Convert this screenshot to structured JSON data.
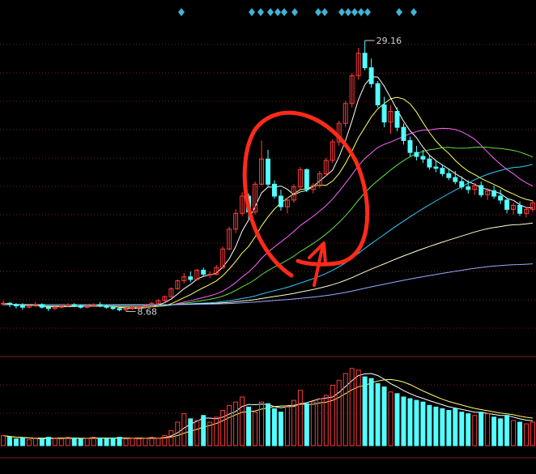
{
  "colors": {
    "background": "#000000",
    "up": "#ff3b3b",
    "down": "#54ffff",
    "grid": "#7a1f1f",
    "signal": "#3fb4d6",
    "annotation": "#ff2a1a",
    "ma5": "#ffffff",
    "ma10": "#ffff66",
    "ma20": "#ff66ff",
    "ma30": "#66dd44",
    "ma60": "#33ccff",
    "ma120": "#ffffcc",
    "ma250": "#99aaff"
  },
  "chart_data": {
    "type": "candlestick",
    "price_range": [
      6.5,
      31
    ],
    "high_label": "29.16",
    "low_label": "8.68",
    "signal_marker_icon": "diamond-icon",
    "annotation": {
      "shape": "ellipse",
      "arrow": "up-right"
    },
    "candles": [
      [
        9.3,
        9.5,
        9.1,
        9.3
      ],
      [
        9.3,
        9.4,
        9.0,
        9.2
      ],
      [
        9.2,
        9.3,
        8.9,
        9.1
      ],
      [
        9.1,
        9.3,
        8.8,
        9.0
      ],
      [
        9.0,
        9.2,
        8.9,
        9.1
      ],
      [
        9.1,
        9.4,
        9.0,
        9.2
      ],
      [
        9.2,
        9.3,
        8.9,
        9.0
      ],
      [
        9.0,
        9.1,
        8.7,
        8.9
      ],
      [
        8.9,
        9.1,
        8.8,
        9.0
      ],
      [
        9.0,
        9.2,
        8.9,
        9.1
      ],
      [
        9.1,
        9.3,
        9.0,
        9.2
      ],
      [
        9.2,
        9.3,
        9.0,
        9.1
      ],
      [
        9.1,
        9.2,
        8.9,
        9.0
      ],
      [
        9.0,
        9.2,
        8.9,
        9.1
      ],
      [
        9.1,
        9.3,
        9.0,
        9.2
      ],
      [
        9.2,
        9.4,
        9.0,
        9.1
      ],
      [
        9.1,
        9.2,
        8.9,
        9.0
      ],
      [
        9.0,
        9.1,
        8.8,
        8.9
      ],
      [
        8.9,
        9.0,
        8.7,
        8.8
      ],
      [
        8.8,
        9.0,
        8.68,
        8.9
      ],
      [
        8.9,
        9.1,
        8.8,
        9.0
      ],
      [
        9.0,
        9.1,
        8.9,
        9.0
      ],
      [
        9.0,
        9.2,
        8.9,
        9.1
      ],
      [
        9.1,
        9.4,
        9.0,
        9.3
      ],
      [
        9.3,
        9.6,
        9.2,
        9.5
      ],
      [
        9.5,
        9.9,
        9.4,
        9.8
      ],
      [
        9.8,
        10.5,
        9.7,
        10.4
      ],
      [
        10.4,
        11.1,
        10.3,
        11.0
      ],
      [
        11.0,
        11.6,
        10.8,
        11.3
      ],
      [
        11.3,
        11.7,
        10.9,
        11.1
      ],
      [
        11.1,
        11.9,
        11.0,
        11.8
      ],
      [
        11.8,
        12.0,
        11.3,
        11.5
      ],
      [
        11.5,
        11.7,
        11.2,
        11.5
      ],
      [
        11.5,
        12.2,
        11.4,
        12.0
      ],
      [
        12.0,
        13.6,
        11.9,
        13.4
      ],
      [
        13.4,
        15.1,
        13.3,
        14.9
      ],
      [
        14.9,
        16.4,
        14.6,
        16.1
      ],
      [
        16.1,
        17.7,
        15.9,
        17.4
      ],
      [
        17.4,
        17.6,
        15.7,
        16.2
      ],
      [
        16.2,
        18.5,
        16.0,
        18.3
      ],
      [
        18.3,
        21.6,
        18.2,
        20.2
      ],
      [
        20.2,
        20.9,
        18.1,
        18.3
      ],
      [
        18.3,
        18.6,
        17.2,
        17.4
      ],
      [
        17.4,
        17.9,
        16.3,
        16.6
      ],
      [
        16.6,
        17.3,
        16.1,
        17.1
      ],
      [
        17.1,
        18.3,
        16.9,
        18.1
      ],
      [
        18.1,
        19.6,
        17.9,
        19.4
      ],
      [
        19.4,
        19.5,
        17.7,
        17.9
      ],
      [
        17.9,
        18.4,
        17.6,
        18.2
      ],
      [
        18.2,
        19.3,
        18.0,
        19.1
      ],
      [
        19.1,
        20.3,
        18.9,
        20.1
      ],
      [
        20.1,
        21.7,
        19.9,
        21.5
      ],
      [
        21.5,
        23.1,
        21.2,
        22.9
      ],
      [
        22.9,
        24.6,
        22.6,
        24.4
      ],
      [
        24.4,
        26.7,
        24.1,
        26.5
      ],
      [
        26.5,
        28.6,
        26.2,
        28.2
      ],
      [
        28.2,
        29.16,
        26.9,
        27.1
      ],
      [
        27.1,
        27.8,
        25.6,
        25.9
      ],
      [
        25.9,
        26.1,
        24.1,
        24.3
      ],
      [
        24.3,
        24.9,
        22.6,
        23.0
      ],
      [
        23.0,
        24.3,
        22.1,
        23.8
      ],
      [
        23.8,
        24.1,
        22.3,
        22.6
      ],
      [
        22.6,
        22.9,
        21.3,
        21.6
      ],
      [
        21.6,
        21.9,
        20.4,
        20.7
      ],
      [
        20.7,
        21.2,
        20.1,
        20.4
      ],
      [
        20.4,
        20.9,
        19.9,
        20.2
      ],
      [
        20.2,
        20.5,
        19.4,
        19.6
      ],
      [
        19.6,
        20.1,
        19.2,
        19.5
      ],
      [
        19.5,
        19.8,
        18.9,
        19.1
      ],
      [
        19.1,
        19.5,
        18.6,
        18.8
      ],
      [
        18.8,
        19.3,
        18.3,
        18.5
      ],
      [
        18.5,
        18.9,
        17.9,
        18.1
      ],
      [
        18.1,
        18.6,
        17.6,
        17.9
      ],
      [
        17.9,
        18.4,
        17.5,
        18.2
      ],
      [
        18.2,
        18.5,
        17.3,
        17.5
      ],
      [
        17.5,
        18.0,
        17.1,
        17.8
      ],
      [
        17.8,
        18.2,
        17.2,
        17.4
      ],
      [
        17.4,
        17.9,
        16.8,
        17.1
      ],
      [
        17.1,
        17.3,
        16.1,
        16.4
      ],
      [
        16.4,
        16.9,
        16.0,
        16.7
      ],
      [
        16.7,
        17.0,
        15.9,
        16.1
      ],
      [
        16.1,
        16.6,
        15.8,
        16.4
      ],
      [
        16.4,
        17.1,
        16.2,
        16.9
      ]
    ],
    "volume": [
      12,
      10,
      8,
      9,
      7,
      9,
      8,
      10,
      9,
      8,
      10,
      9,
      8,
      9,
      10,
      9,
      8,
      9,
      10,
      8,
      9,
      8,
      9,
      10,
      9,
      12,
      18,
      28,
      38,
      32,
      30,
      36,
      28,
      34,
      42,
      48,
      52,
      58,
      46,
      40,
      52,
      50,
      44,
      40,
      46,
      54,
      66,
      50,
      52,
      56,
      60,
      72,
      78,
      86,
      92,
      90,
      82,
      80,
      74,
      70,
      64,
      62,
      58,
      56,
      54,
      52,
      48,
      46,
      44,
      42,
      44,
      40,
      38,
      36,
      40,
      38,
      34,
      32,
      36,
      30,
      28,
      26,
      28
    ],
    "ma_periods": [
      5,
      10,
      20,
      30,
      60,
      120,
      250
    ]
  }
}
